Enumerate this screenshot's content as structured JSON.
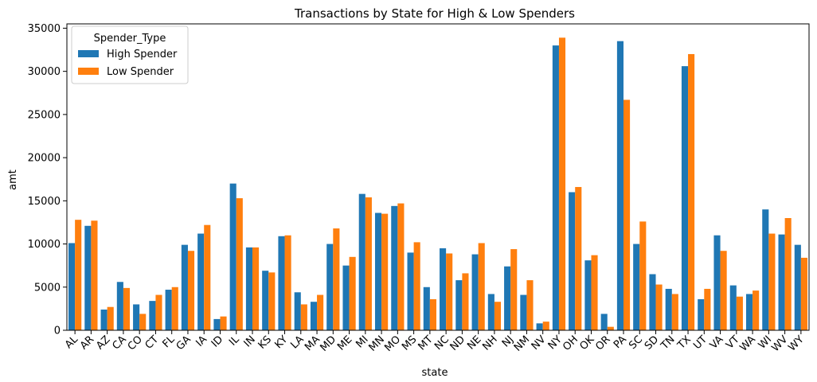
{
  "chart_data": {
    "type": "bar",
    "title": "Transactions by State for High & Low Spenders",
    "xlabel": "state",
    "ylabel": "amt",
    "ylim": [
      0,
      35500
    ],
    "yticks": [
      0,
      5000,
      10000,
      15000,
      20000,
      25000,
      30000,
      35000
    ],
    "yticklabels": [
      "0",
      "5000",
      "10000",
      "15000",
      "20000",
      "25000",
      "30000",
      "35000"
    ],
    "grid": false,
    "legend": {
      "title": "Spender_Type",
      "placement": "top-left"
    },
    "categories": [
      "AL",
      "AR",
      "AZ",
      "CA",
      "CO",
      "CT",
      "FL",
      "GA",
      "IA",
      "ID",
      "IL",
      "IN",
      "KS",
      "KY",
      "LA",
      "MA",
      "MD",
      "ME",
      "MI",
      "MN",
      "MO",
      "MS",
      "MT",
      "NC",
      "ND",
      "NE",
      "NH",
      "NJ",
      "NM",
      "NV",
      "NY",
      "OH",
      "OK",
      "OR",
      "PA",
      "SC",
      "SD",
      "TN",
      "TX",
      "UT",
      "VA",
      "VT",
      "WA",
      "WI",
      "WV",
      "WY"
    ],
    "series": [
      {
        "name": "High Spender",
        "color": "#1f77b4",
        "values": [
          10100,
          12100,
          2400,
          5600,
          3000,
          3400,
          4700,
          9900,
          11200,
          1300,
          17000,
          9600,
          6900,
          10900,
          4400,
          3300,
          10000,
          7500,
          15800,
          13600,
          14400,
          9000,
          5000,
          9500,
          5800,
          8800,
          4200,
          7400,
          4100,
          800,
          33000,
          16000,
          8100,
          1900,
          33500,
          10000,
          6500,
          4800,
          30600,
          3600,
          11000,
          5200,
          4200,
          14000,
          11100,
          9900
        ]
      },
      {
        "name": "Low Spender",
        "color": "#ff7f0e",
        "values": [
          12800,
          12700,
          2700,
          4900,
          1900,
          4100,
          5000,
          9200,
          12200,
          1600,
          15300,
          9600,
          6700,
          11000,
          3000,
          4100,
          11800,
          8500,
          15400,
          13500,
          14700,
          10200,
          3600,
          8900,
          6600,
          10100,
          3300,
          9400,
          5800,
          1000,
          33900,
          16600,
          8700,
          400,
          26700,
          12600,
          5300,
          4200,
          32000,
          4800,
          9200,
          3900,
          4600,
          11200,
          13000,
          8400
        ]
      }
    ]
  }
}
